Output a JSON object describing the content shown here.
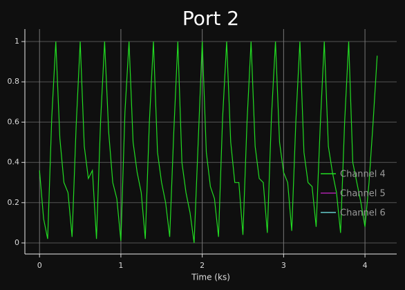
{
  "chart_data": {
    "type": "line",
    "title": "Port 2",
    "xlabel": "Time (ks)",
    "x": [
      0,
      0.05,
      0.1,
      0.15,
      0.2,
      0.25,
      0.3,
      0.35,
      0.4,
      0.45,
      0.5,
      0.55,
      0.6,
      0.65,
      0.7,
      0.75,
      0.8,
      0.85,
      0.9,
      0.95,
      1,
      1.05,
      1.1,
      1.15,
      1.2,
      1.25,
      1.3,
      1.35,
      1.4,
      1.45,
      1.5,
      1.55,
      1.6,
      1.65,
      1.7,
      1.75,
      1.8,
      1.85,
      1.9,
      1.95,
      2,
      2.05,
      2.1,
      2.15,
      2.2,
      2.25,
      2.3,
      2.35,
      2.4,
      2.45,
      2.5,
      2.55,
      2.6,
      2.65,
      2.7,
      2.75,
      2.8,
      2.85,
      2.9,
      2.95,
      3,
      3.05,
      3.1,
      3.15,
      3.2,
      3.25,
      3.3,
      3.35,
      3.4,
      3.45,
      3.5,
      3.55,
      3.6,
      3.65,
      3.7,
      3.75,
      3.8,
      3.85,
      3.9,
      3.95,
      4,
      4.05,
      4.1,
      4.15
    ],
    "series": [
      {
        "name": "Channel 4",
        "color": "#22dd22",
        "values": [
          0.36,
          0.12,
          0.02,
          0.62,
          1,
          0.52,
          0.3,
          0.25,
          0.03,
          0.58,
          1,
          0.48,
          0.32,
          0.36,
          0.02,
          0.6,
          1,
          0.55,
          0.3,
          0.22,
          0.01,
          0.65,
          1,
          0.5,
          0.35,
          0.25,
          0.02,
          0.6,
          1,
          0.45,
          0.3,
          0.2,
          0.03,
          0.55,
          1,
          0.4,
          0.25,
          0.15,
          0,
          0.5,
          1,
          0.45,
          0.28,
          0.22,
          0.03,
          0.62,
          1,
          0.5,
          0.3,
          0.3,
          0.04,
          0.6,
          1,
          0.48,
          0.32,
          0.3,
          0.05,
          0.62,
          1,
          0.5,
          0.35,
          0.3,
          0.06,
          0.6,
          1,
          0.45,
          0.3,
          0.28,
          0.08,
          0.58,
          1,
          0.48,
          0.35,
          0.25,
          0.05,
          0.6,
          1,
          0.4,
          0.3,
          0.2,
          0.08,
          0.3,
          0.6,
          0.93
        ]
      },
      {
        "name": "Channel 5",
        "color": "#aa22aa"
      },
      {
        "name": "Channel 6",
        "color": "#66cccc"
      }
    ],
    "xlim": [
      -0.18,
      4.39
    ],
    "xticks": [
      0,
      1,
      2,
      3,
      4
    ],
    "ylim": [
      -0.055,
      1.062
    ],
    "yticks": [
      0,
      0.2,
      0.4,
      0.6,
      0.8,
      1
    ],
    "grid": true,
    "legend": "lower right"
  }
}
